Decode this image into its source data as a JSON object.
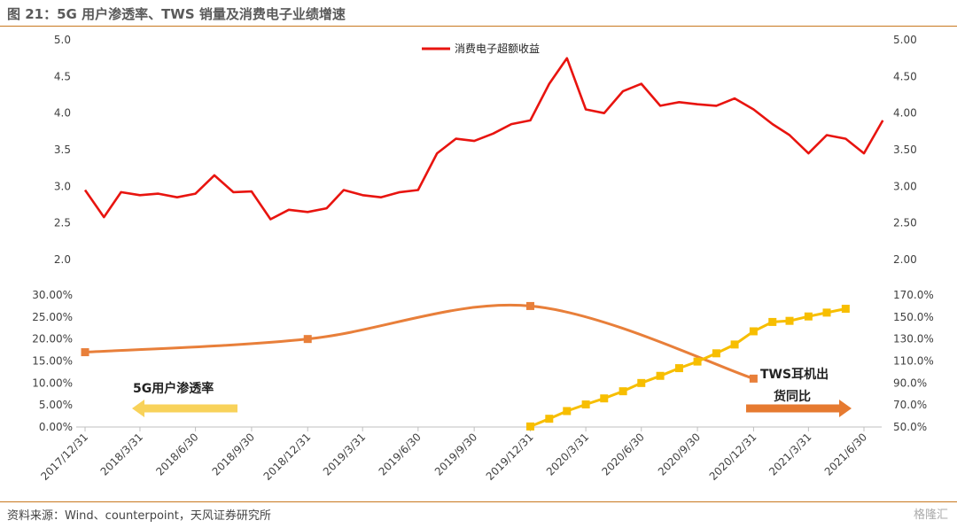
{
  "title": "图 21：5G 用户渗透率、TWS 销量及消费电子业绩增速",
  "source": "资料来源：Wind、counterpoint，天风证券研究所",
  "watermark": "格隆汇",
  "colors": {
    "excess": "#e8140f",
    "g5": "#e87f3a",
    "tws": "#f7be00",
    "accent": "#c8791f",
    "arrow_5g": "#f8d25a",
    "arrow_tws": "#e67a30"
  },
  "x_dates": [
    "2017/12/31",
    "2018/3/31",
    "2018/6/30",
    "2018/9/30",
    "2018/12/31",
    "2019/3/31",
    "2019/6/30",
    "2019/9/30",
    "2019/12/31",
    "2020/3/31",
    "2020/6/30",
    "2020/9/30",
    "2020/12/31",
    "2021/3/31",
    "2021/6/30"
  ],
  "annotations": {
    "g5_label": "5G用户渗透率",
    "tws_line1": "TWS耳机出",
    "tws_line2": "货同比"
  },
  "chart_data": [
    {
      "type": "line",
      "legend": [
        "消费电子超额收益"
      ],
      "legend_position": "top-center",
      "yleft_ticks": [
        "5.0",
        "4.5",
        "4.0",
        "3.5",
        "3.0",
        "2.5",
        "2.0"
      ],
      "yright_ticks": [
        "5.00",
        "4.50",
        "4.00",
        "3.50",
        "3.00",
        "2.50",
        "2.00"
      ],
      "ylim": [
        2.0,
        5.0
      ],
      "series": [
        {
          "name": "消费电子超额收益",
          "x": [
            "2017/12/31",
            "2018/1/31",
            "2018/2/28",
            "2018/3/31",
            "2018/4/30",
            "2018/5/31",
            "2018/6/30",
            "2018/7/31",
            "2018/8/31",
            "2018/9/30",
            "2018/10/31",
            "2018/11/30",
            "2018/12/31",
            "2019/1/31",
            "2019/2/28",
            "2019/3/31",
            "2019/4/30",
            "2019/5/31",
            "2019/6/30",
            "2019/7/31",
            "2019/8/31",
            "2019/9/30",
            "2019/10/31",
            "2019/11/30",
            "2019/12/31",
            "2020/1/31",
            "2020/2/29",
            "2020/3/31",
            "2020/4/30",
            "2020/5/31",
            "2020/6/30",
            "2020/7/31",
            "2020/8/31",
            "2020/9/30",
            "2020/10/31",
            "2020/11/30",
            "2020/12/31",
            "2021/1/31",
            "2021/2/28",
            "2021/3/31",
            "2021/4/30",
            "2021/5/31",
            "2021/6/30",
            "2021/7/31"
          ],
          "y": [
            2.95,
            2.58,
            2.92,
            2.88,
            2.9,
            2.85,
            2.9,
            3.15,
            2.92,
            2.93,
            2.55,
            2.68,
            2.65,
            2.7,
            2.95,
            2.88,
            2.85,
            2.92,
            2.95,
            3.45,
            3.65,
            3.62,
            3.72,
            3.85,
            3.9,
            4.4,
            4.75,
            4.05,
            4.0,
            4.3,
            4.4,
            4.1,
            4.15,
            4.12,
            4.1,
            4.2,
            4.05,
            3.85,
            3.7,
            3.45,
            3.7,
            3.65,
            3.45,
            3.9
          ]
        }
      ]
    },
    {
      "type": "line",
      "yleft_ticks": [
        "30.00%",
        "25.00%",
        "20.00%",
        "15.00%",
        "10.00%",
        "5.00%",
        "0.00%"
      ],
      "yleft_lim": [
        0,
        30
      ],
      "yright_ticks": [
        "170.0%",
        "150.0%",
        "130.0%",
        "110.0%",
        "90.0%",
        "70.0%",
        "50.0%"
      ],
      "yright_lim": [
        50,
        170
      ],
      "series": [
        {
          "name": "5G用户渗透率",
          "axis": "left",
          "x": [
            "2017/12/31",
            "2018/12/31",
            "2019/12/31",
            "2020/12/31"
          ],
          "y": [
            17.0,
            20.0,
            27.5,
            11.0
          ]
        },
        {
          "name": "TWS耳机出货同比",
          "axis": "right",
          "x": [
            "2019/12/31",
            "2020/1/31",
            "2020/2/29",
            "2020/3/31",
            "2020/4/30",
            "2020/5/31",
            "2020/6/30",
            "2020/7/31",
            "2020/8/31",
            "2020/9/30",
            "2020/10/31",
            "2020/11/30",
            "2020/12/31",
            "2021/1/31",
            "2021/2/28",
            "2021/3/31",
            "2021/4/30",
            "2021/5/31"
          ],
          "y": [
            50.5,
            57.5,
            64.5,
            70.5,
            76,
            82.5,
            90,
            96.5,
            103.5,
            109.5,
            117,
            125,
            137,
            145.5,
            146.5,
            150.5,
            154,
            157.5
          ]
        }
      ]
    }
  ]
}
